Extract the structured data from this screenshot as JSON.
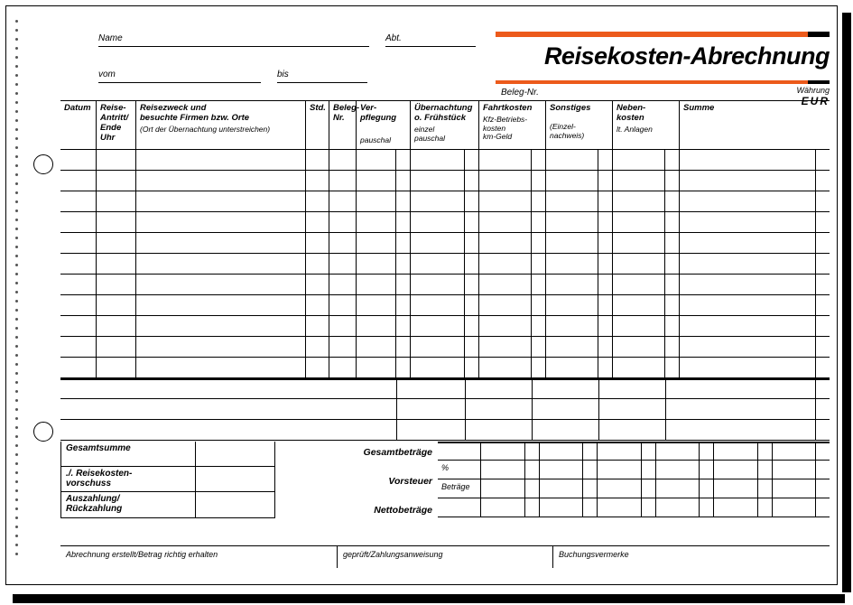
{
  "colors": {
    "accent": "#ec5a1b",
    "line": "#000000",
    "bg": "#ffffff"
  },
  "header": {
    "title": "Reisekosten-Abrechnung",
    "name_label": "Name",
    "abt_label": "Abt.",
    "vom_label": "vom",
    "bis_label": "bis",
    "beleg_label": "Beleg-Nr.",
    "waehrung_label": "Währung",
    "waehrung_value": "EUR"
  },
  "columns": {
    "datum": "Datum",
    "reise": "Reise-\nAntritt/\nEnde\nUhr",
    "zweck": "Reisezweck und\nbesuchte Firmen bzw. Orte",
    "zweck_sub": "(Ort der Übernachtung unterstreichen)",
    "std": "Std.",
    "beleg": "Beleg-\nNr.",
    "verpf": "Ver-\npflegung",
    "verpf_sub": "pauschal",
    "uebern": "Übernachtung\no. Frühstück",
    "uebern_sub": "einzel\npauschal",
    "fahrt": "Fahrtkosten",
    "fahrt_sub": "Kfz-Betriebs-\nkosten\nkm-Geld",
    "sonst": "Sonstiges",
    "sonst_sub": "(Einzel-\nnachweis)",
    "neben": "Neben-\nkosten",
    "neben_sub": "lt. Anlagen",
    "summe": "Summe"
  },
  "grid": {
    "body_rows": 11,
    "extra_right_rows": 3
  },
  "totals": {
    "gesamtsumme": "Gesamtsumme",
    "vorschuss": "./. Reisekosten-\n    vorschuss",
    "auszahlung": "Auszahlung/\nRückzahlung",
    "gesamtbetraege": "Gesamtbeträge",
    "vorsteuer": "Vorsteuer",
    "nettobetraege": "Nettobeträge",
    "pct": "%",
    "betraege": "Beträge"
  },
  "footer": {
    "abrechnung": "Abrechnung erstellt/Betrag richtig erhalten",
    "geprueft": "geprüft/Zahlungsanweisung",
    "buchung": "Buchungsvermerke"
  }
}
